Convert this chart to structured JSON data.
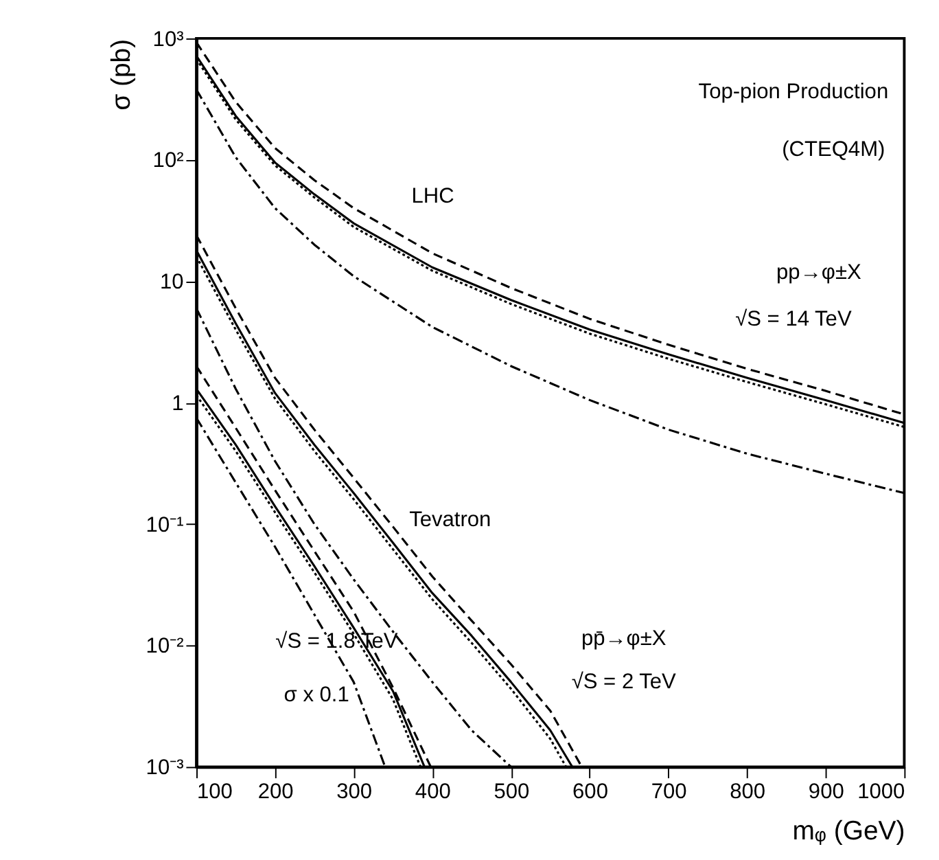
{
  "chart_data": {
    "type": "line",
    "xlabel": "mᵩ (GeV)",
    "ylabel": "σ (pb)",
    "xlim": [
      100,
      1000
    ],
    "xticks": [
      100,
      200,
      300,
      400,
      500,
      600,
      700,
      800,
      900,
      1000
    ],
    "ylim": [
      0.001,
      1000
    ],
    "yticks": [
      {
        "value": 0.001,
        "label": "10⁻³"
      },
      {
        "value": 0.01,
        "label": "10⁻²"
      },
      {
        "value": 0.1,
        "label": "10⁻¹"
      },
      1,
      10,
      {
        "value": 100,
        "label": "10²"
      },
      {
        "value": 1000,
        "label": "10³"
      }
    ],
    "log": "y",
    "grid": false,
    "marker": "none",
    "series": [
      {
        "color": "#000000",
        "line_style": "dashed",
        "x": [
          100,
          150,
          200,
          250,
          300,
          400,
          500,
          600,
          700,
          800,
          900,
          1000
        ],
        "values": [
          930,
          300,
          125,
          68,
          40,
          17,
          8.8,
          4.9,
          3.0,
          1.9,
          1.25,
          0.8
        ]
      },
      {
        "color": "#000000",
        "line_style": "solid",
        "x": [
          100,
          150,
          200,
          250,
          300,
          400,
          500,
          600,
          700,
          800,
          900,
          1000
        ],
        "values": [
          720,
          230,
          95,
          52,
          30,
          13,
          7,
          4.0,
          2.5,
          1.6,
          1.05,
          0.68
        ]
      },
      {
        "color": "#000000",
        "line_style": "dotted",
        "x": [
          100,
          150,
          200,
          250,
          300,
          400,
          500,
          600,
          700,
          800,
          900,
          1000
        ],
        "values": [
          680,
          215,
          90,
          49,
          28,
          12.2,
          6.5,
          3.7,
          2.3,
          1.48,
          0.97,
          0.63
        ]
      },
      {
        "color": "#000000",
        "line_style": "dashdot",
        "x": [
          100,
          150,
          200,
          250,
          300,
          400,
          500,
          600,
          700,
          800,
          900,
          1000
        ],
        "values": [
          380,
          105,
          40,
          20,
          11,
          4.2,
          2.0,
          1.05,
          0.6,
          0.38,
          0.26,
          0.18
        ]
      },
      {
        "color": "#000000",
        "line_style": "dashed",
        "x": [
          100,
          150,
          200,
          250,
          300,
          350,
          400,
          450,
          500,
          550,
          590
        ],
        "values": [
          24,
          6,
          1.6,
          0.6,
          0.24,
          0.095,
          0.037,
          0.016,
          0.007,
          0.0029,
          0.001
        ]
      },
      {
        "color": "#000000",
        "line_style": "solid",
        "x": [
          100,
          150,
          200,
          250,
          300,
          350,
          400,
          450,
          500,
          550,
          578
        ],
        "values": [
          18,
          4.5,
          1.2,
          0.45,
          0.18,
          0.07,
          0.027,
          0.012,
          0.005,
          0.002,
          0.001
        ]
      },
      {
        "color": "#000000",
        "line_style": "dotted",
        "x": [
          100,
          150,
          200,
          250,
          300,
          350,
          400,
          450,
          500,
          550,
          570
        ],
        "values": [
          16,
          4.0,
          1.08,
          0.4,
          0.16,
          0.062,
          0.024,
          0.0105,
          0.0044,
          0.0017,
          0.001
        ]
      },
      {
        "color": "#000000",
        "line_style": "dashdot",
        "x": [
          100,
          150,
          200,
          250,
          300,
          350,
          400,
          450,
          500
        ],
        "values": [
          6,
          1.3,
          0.33,
          0.1,
          0.035,
          0.013,
          0.005,
          0.002,
          0.001
        ]
      },
      {
        "color": "#000000",
        "line_style": "dashed",
        "x": [
          100,
          150,
          200,
          250,
          300,
          350,
          398
        ],
        "values": [
          2.0,
          0.62,
          0.19,
          0.06,
          0.019,
          0.0045,
          0.001
        ]
      },
      {
        "color": "#000000",
        "line_style": "solid",
        "x": [
          100,
          150,
          200,
          250,
          300,
          350,
          390
        ],
        "values": [
          1.3,
          0.45,
          0.14,
          0.045,
          0.014,
          0.0042,
          0.001
        ]
      },
      {
        "color": "#000000",
        "line_style": "dotted",
        "x": [
          100,
          150,
          200,
          250,
          300,
          350,
          385
        ],
        "values": [
          1.15,
          0.4,
          0.125,
          0.04,
          0.0125,
          0.0036,
          0.001
        ]
      },
      {
        "color": "#000000",
        "line_style": "dashdot",
        "x": [
          100,
          150,
          200,
          250,
          300,
          340
        ],
        "values": [
          0.75,
          0.22,
          0.065,
          0.018,
          0.005,
          0.001
        ]
      }
    ],
    "annotations": [
      "Top-pion Production",
      "(CTEQ4M)",
      "LHC",
      "pp→φ±X",
      "√S = 14 TeV",
      "Tevatron",
      "pp̄→φ±X",
      "√S = 2 TeV",
      "√S = 1.8 TeV",
      "σ x 0.1"
    ]
  }
}
